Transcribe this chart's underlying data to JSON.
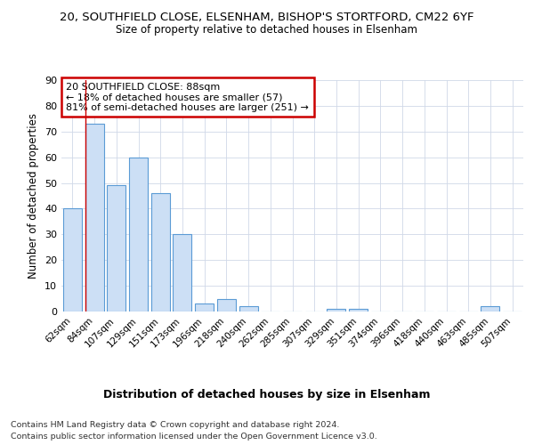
{
  "title": "20, SOUTHFIELD CLOSE, ELSENHAM, BISHOP'S STORTFORD, CM22 6YF",
  "subtitle": "Size of property relative to detached houses in Elsenham",
  "xlabel": "Distribution of detached houses by size in Elsenham",
  "ylabel": "Number of detached properties",
  "categories": [
    "62sqm",
    "84sqm",
    "107sqm",
    "129sqm",
    "151sqm",
    "173sqm",
    "196sqm",
    "218sqm",
    "240sqm",
    "262sqm",
    "285sqm",
    "307sqm",
    "329sqm",
    "351sqm",
    "374sqm",
    "396sqm",
    "418sqm",
    "440sqm",
    "463sqm",
    "485sqm",
    "507sqm"
  ],
  "values": [
    40,
    73,
    49,
    60,
    46,
    30,
    3,
    5,
    2,
    0,
    0,
    0,
    1,
    1,
    0,
    0,
    0,
    0,
    0,
    2,
    0
  ],
  "bar_color": "#ccdff5",
  "bar_edge_color": "#5b9bd5",
  "vline_x": 1,
  "vline_color": "#cc0000",
  "annotation_text": "20 SOUTHFIELD CLOSE: 88sqm\n← 18% of detached houses are smaller (57)\n81% of semi-detached houses are larger (251) →",
  "annotation_box_color": "#ffffff",
  "annotation_box_edge": "#cc0000",
  "ylim": [
    0,
    90
  ],
  "yticks": [
    0,
    10,
    20,
    30,
    40,
    50,
    60,
    70,
    80,
    90
  ],
  "footer_line1": "Contains HM Land Registry data © Crown copyright and database right 2024.",
  "footer_line2": "Contains public sector information licensed under the Open Government Licence v3.0.",
  "background_color": "#ffffff",
  "grid_color": "#d0d8e8"
}
